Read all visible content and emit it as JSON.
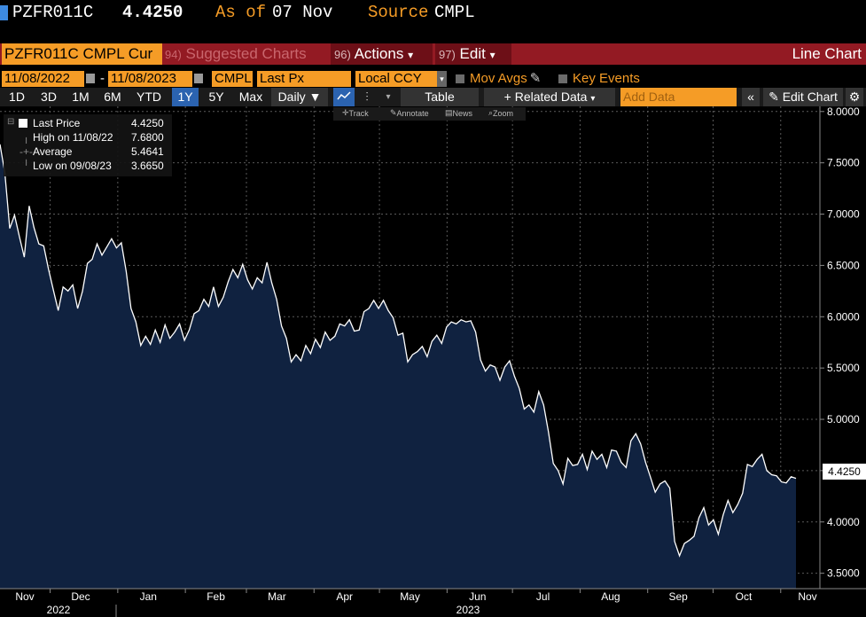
{
  "header": {
    "ticker": "PZFR011C",
    "price": "4.4250",
    "as_of_label": "As of",
    "as_of_value": "07 Nov",
    "source_label": "Source",
    "source_value": "CMPL"
  },
  "toolbar1": {
    "security_field": "PZFR011C CMPL Cur",
    "suggested_num": "94)",
    "suggested_label": "Suggested Charts",
    "actions_num": "96)",
    "actions_label": "Actions",
    "edit_num": "97)",
    "edit_label": "Edit",
    "chart_type": "Line Chart",
    "caret": "▾"
  },
  "toolbar2": {
    "start_date": "11/08/2022",
    "dash": "-",
    "end_date": "11/08/2023",
    "source": "CMPL",
    "field": "Last Px",
    "currency": "Local CCY",
    "mov_avgs": "Mov Avgs",
    "key_events": "Key Events"
  },
  "toolbar3": {
    "periods": [
      "1D",
      "3D",
      "1M",
      "6M",
      "YTD",
      "1Y",
      "5Y",
      "Max"
    ],
    "selected_period": "1Y",
    "frequency": "Daily ▼",
    "table": "Table",
    "related_data": "+ Related Data",
    "add_data_placeholder": "Add Data",
    "back": "«",
    "edit_chart": "Edit Chart"
  },
  "subtools": {
    "track": "Track",
    "annotate": "Annotate",
    "news": "News",
    "zoom": "Zoom"
  },
  "legend": {
    "rows": [
      {
        "label": "Last Price",
        "value": "4.4250"
      },
      {
        "label": "High on 11/08/22",
        "value": "7.6800"
      },
      {
        "label": "Average",
        "value": "5.4641"
      },
      {
        "label": "Low on 09/08/23",
        "value": "3.6650"
      }
    ]
  },
  "colors": {
    "line": "#ffffff",
    "area_fill": "#102240",
    "grid": "#5a5a5a",
    "accent_orange": "#f59c26",
    "toolbar_red": "#931a23"
  },
  "chart_data": {
    "type": "area",
    "series": [
      {
        "name": "Last Price",
        "values": [
          {
            "x": "2022-11-08",
            "y": 7.68
          },
          {
            "x": "2022-11-09",
            "y": 7.4
          },
          {
            "x": "2022-11-10",
            "y": 6.86
          },
          {
            "x": "2022-11-11",
            "y": 6.99
          },
          {
            "x": "2022-11-14",
            "y": 6.78
          },
          {
            "x": "2022-11-15",
            "y": 6.58
          },
          {
            "x": "2022-11-17",
            "y": 7.08
          },
          {
            "x": "2022-11-19",
            "y": 6.87
          },
          {
            "x": "2022-11-21",
            "y": 6.71
          },
          {
            "x": "2022-11-24",
            "y": 6.69
          },
          {
            "x": "2022-11-26",
            "y": 6.46
          },
          {
            "x": "2022-11-28",
            "y": 6.26
          },
          {
            "x": "2022-11-30",
            "y": 6.06
          },
          {
            "x": "2022-12-02",
            "y": 6.29
          },
          {
            "x": "2022-12-04",
            "y": 6.25
          },
          {
            "x": "2022-12-06",
            "y": 6.31
          },
          {
            "x": "2022-12-08",
            "y": 6.08
          },
          {
            "x": "2022-12-10",
            "y": 6.25
          },
          {
            "x": "2022-12-12",
            "y": 6.52
          },
          {
            "x": "2022-12-14",
            "y": 6.56
          },
          {
            "x": "2022-12-16",
            "y": 6.71
          },
          {
            "x": "2022-12-18",
            "y": 6.6
          },
          {
            "x": "2022-12-20",
            "y": 6.68
          },
          {
            "x": "2022-12-22",
            "y": 6.76
          },
          {
            "x": "2022-12-24",
            "y": 6.67
          },
          {
            "x": "2022-12-26",
            "y": 6.72
          },
          {
            "x": "2022-12-28",
            "y": 6.44
          },
          {
            "x": "2022-12-30",
            "y": 6.08
          },
          {
            "x": "2023-01-01",
            "y": 5.95
          },
          {
            "x": "2023-01-03",
            "y": 5.72
          },
          {
            "x": "2023-01-05",
            "y": 5.81
          },
          {
            "x": "2023-01-07",
            "y": 5.73
          },
          {
            "x": "2023-01-09",
            "y": 5.87
          },
          {
            "x": "2023-01-11",
            "y": 5.75
          },
          {
            "x": "2023-01-13",
            "y": 5.92
          },
          {
            "x": "2023-01-15",
            "y": 5.79
          },
          {
            "x": "2023-01-17",
            "y": 5.85
          },
          {
            "x": "2023-01-19",
            "y": 5.93
          },
          {
            "x": "2023-01-21",
            "y": 5.77
          },
          {
            "x": "2023-01-23",
            "y": 5.87
          },
          {
            "x": "2023-01-25",
            "y": 6.03
          },
          {
            "x": "2023-01-27",
            "y": 6.06
          },
          {
            "x": "2023-01-29",
            "y": 6.17
          },
          {
            "x": "2023-01-31",
            "y": 6.1
          },
          {
            "x": "2023-02-02",
            "y": 6.29
          },
          {
            "x": "2023-02-04",
            "y": 6.1
          },
          {
            "x": "2023-02-06",
            "y": 6.19
          },
          {
            "x": "2023-02-08",
            "y": 6.34
          },
          {
            "x": "2023-02-10",
            "y": 6.46
          },
          {
            "x": "2023-02-12",
            "y": 6.38
          },
          {
            "x": "2023-02-14",
            "y": 6.51
          },
          {
            "x": "2023-02-16",
            "y": 6.36
          },
          {
            "x": "2023-02-18",
            "y": 6.27
          },
          {
            "x": "2023-02-20",
            "y": 6.38
          },
          {
            "x": "2023-02-22",
            "y": 6.33
          },
          {
            "x": "2023-02-24",
            "y": 6.53
          },
          {
            "x": "2023-02-26",
            "y": 6.33
          },
          {
            "x": "2023-02-28",
            "y": 6.17
          },
          {
            "x": "2023-03-02",
            "y": 5.91
          },
          {
            "x": "2023-03-04",
            "y": 5.79
          },
          {
            "x": "2023-03-06",
            "y": 5.56
          },
          {
            "x": "2023-03-08",
            "y": 5.63
          },
          {
            "x": "2023-03-10",
            "y": 5.57
          },
          {
            "x": "2023-03-12",
            "y": 5.72
          },
          {
            "x": "2023-03-14",
            "y": 5.64
          },
          {
            "x": "2023-03-16",
            "y": 5.78
          },
          {
            "x": "2023-03-18",
            "y": 5.7
          },
          {
            "x": "2023-03-20",
            "y": 5.85
          },
          {
            "x": "2023-03-22",
            "y": 5.77
          },
          {
            "x": "2023-03-24",
            "y": 5.81
          },
          {
            "x": "2023-03-26",
            "y": 5.93
          },
          {
            "x": "2023-03-28",
            "y": 5.91
          },
          {
            "x": "2023-03-30",
            "y": 5.97
          },
          {
            "x": "2023-04-01",
            "y": 5.86
          },
          {
            "x": "2023-04-03",
            "y": 5.87
          },
          {
            "x": "2023-04-05",
            "y": 6.05
          },
          {
            "x": "2023-04-07",
            "y": 6.08
          },
          {
            "x": "2023-04-09",
            "y": 6.16
          },
          {
            "x": "2023-04-11",
            "y": 6.08
          },
          {
            "x": "2023-04-13",
            "y": 6.16
          },
          {
            "x": "2023-04-15",
            "y": 6.06
          },
          {
            "x": "2023-04-17",
            "y": 5.99
          },
          {
            "x": "2023-04-19",
            "y": 5.82
          },
          {
            "x": "2023-04-21",
            "y": 5.84
          },
          {
            "x": "2023-04-23",
            "y": 5.56
          },
          {
            "x": "2023-04-25",
            "y": 5.63
          },
          {
            "x": "2023-04-27",
            "y": 5.66
          },
          {
            "x": "2023-04-29",
            "y": 5.71
          },
          {
            "x": "2023-05-01",
            "y": 5.61
          },
          {
            "x": "2023-05-03",
            "y": 5.76
          },
          {
            "x": "2023-05-05",
            "y": 5.82
          },
          {
            "x": "2023-05-07",
            "y": 5.74
          },
          {
            "x": "2023-05-09",
            "y": 5.9
          },
          {
            "x": "2023-05-11",
            "y": 5.95
          },
          {
            "x": "2023-05-13",
            "y": 5.93
          },
          {
            "x": "2023-05-15",
            "y": 5.97
          },
          {
            "x": "2023-05-17",
            "y": 5.95
          },
          {
            "x": "2023-05-19",
            "y": 5.96
          },
          {
            "x": "2023-05-21",
            "y": 5.85
          },
          {
            "x": "2023-05-23",
            "y": 5.58
          },
          {
            "x": "2023-05-25",
            "y": 5.47
          },
          {
            "x": "2023-05-27",
            "y": 5.53
          },
          {
            "x": "2023-05-29",
            "y": 5.51
          },
          {
            "x": "2023-05-31",
            "y": 5.38
          },
          {
            "x": "2023-06-02",
            "y": 5.51
          },
          {
            "x": "2023-06-04",
            "y": 5.57
          },
          {
            "x": "2023-06-06",
            "y": 5.42
          },
          {
            "x": "2023-06-08",
            "y": 5.3
          },
          {
            "x": "2023-06-10",
            "y": 5.1
          },
          {
            "x": "2023-06-12",
            "y": 5.14
          },
          {
            "x": "2023-06-14",
            "y": 5.07
          },
          {
            "x": "2023-06-16",
            "y": 5.27
          },
          {
            "x": "2023-06-18",
            "y": 5.14
          },
          {
            "x": "2023-06-20",
            "y": 4.88
          },
          {
            "x": "2023-06-22",
            "y": 4.57
          },
          {
            "x": "2023-06-24",
            "y": 4.5
          },
          {
            "x": "2023-06-26",
            "y": 4.37
          },
          {
            "x": "2023-06-28",
            "y": 4.62
          },
          {
            "x": "2023-06-30",
            "y": 4.55
          },
          {
            "x": "2023-07-02",
            "y": 4.56
          },
          {
            "x": "2023-07-04",
            "y": 4.66
          },
          {
            "x": "2023-07-06",
            "y": 4.51
          },
          {
            "x": "2023-07-08",
            "y": 4.69
          },
          {
            "x": "2023-07-10",
            "y": 4.61
          },
          {
            "x": "2023-07-12",
            "y": 4.66
          },
          {
            "x": "2023-07-14",
            "y": 4.53
          },
          {
            "x": "2023-07-16",
            "y": 4.7
          },
          {
            "x": "2023-07-18",
            "y": 4.69
          },
          {
            "x": "2023-07-20",
            "y": 4.58
          },
          {
            "x": "2023-07-22",
            "y": 4.53
          },
          {
            "x": "2023-07-24",
            "y": 4.79
          },
          {
            "x": "2023-07-26",
            "y": 4.86
          },
          {
            "x": "2023-07-28",
            "y": 4.76
          },
          {
            "x": "2023-07-30",
            "y": 4.58
          },
          {
            "x": "2023-08-01",
            "y": 4.44
          },
          {
            "x": "2023-08-03",
            "y": 4.29
          },
          {
            "x": "2023-08-05",
            "y": 4.37
          },
          {
            "x": "2023-08-07",
            "y": 4.4
          },
          {
            "x": "2023-08-09",
            "y": 4.33
          },
          {
            "x": "2023-08-11",
            "y": 3.81
          },
          {
            "x": "2023-08-13",
            "y": 3.67
          },
          {
            "x": "2023-08-15",
            "y": 3.79
          },
          {
            "x": "2023-08-17",
            "y": 3.82
          },
          {
            "x": "2023-08-19",
            "y": 3.86
          },
          {
            "x": "2023-08-21",
            "y": 4.04
          },
          {
            "x": "2023-08-23",
            "y": 4.14
          },
          {
            "x": "2023-08-25",
            "y": 3.97
          },
          {
            "x": "2023-08-27",
            "y": 4.02
          },
          {
            "x": "2023-08-29",
            "y": 3.88
          },
          {
            "x": "2023-08-31",
            "y": 4.07
          },
          {
            "x": "2023-09-02",
            "y": 4.21
          },
          {
            "x": "2023-09-04",
            "y": 4.09
          },
          {
            "x": "2023-09-06",
            "y": 4.17
          },
          {
            "x": "2023-09-08",
            "y": 4.28
          },
          {
            "x": "2023-09-10",
            "y": 4.56
          },
          {
            "x": "2023-09-12",
            "y": 4.54
          },
          {
            "x": "2023-09-14",
            "y": 4.61
          },
          {
            "x": "2023-09-16",
            "y": 4.66
          },
          {
            "x": "2023-09-18",
            "y": 4.5
          },
          {
            "x": "2023-09-20",
            "y": 4.46
          },
          {
            "x": "2023-09-22",
            "y": 4.45
          },
          {
            "x": "2023-09-24",
            "y": 4.39
          },
          {
            "x": "2023-09-26",
            "y": 4.38
          },
          {
            "x": "2023-09-28",
            "y": 4.44
          },
          {
            "x": "2023-09-30",
            "y": 4.425
          }
        ]
      }
    ],
    "x_axis": {
      "ticks": [
        "Nov",
        "Dec",
        "Jan",
        "Feb",
        "Mar",
        "Apr",
        "May",
        "Jun",
        "Jul",
        "Aug",
        "Sep",
        "Oct",
        "Nov"
      ],
      "years": [
        "2022",
        "2023"
      ]
    },
    "y_axis": {
      "ticks": [
        "8.0000",
        "7.5000",
        "7.0000",
        "6.5000",
        "6.0000",
        "5.5000",
        "5.0000",
        "4.5000",
        "4.0000",
        "3.5000"
      ],
      "ylim": [
        3.35,
        8.05
      ],
      "position": "right"
    },
    "last_value_label": "4.4250",
    "grid": true,
    "legend_position": "top-left"
  }
}
